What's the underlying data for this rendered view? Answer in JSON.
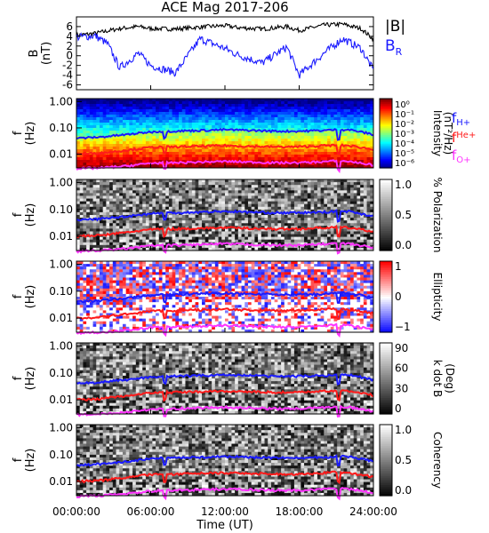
{
  "title": "ACE Mag 2017-206",
  "x_axis": {
    "label": "Time (UT)",
    "ticks": [
      "00:00:00",
      "06:00:00",
      "12:00:00",
      "18:00:00",
      "24:00:00"
    ]
  },
  "colors": {
    "b_total": "#000000",
    "b_r": "#1a1aff",
    "f_h": "#1a1aff",
    "f_he": "#ff1a1a",
    "f_o": "#ff33ff"
  },
  "chart_data": [
    {
      "type": "line",
      "panel": "B",
      "ylabel": "B",
      "yunit": "(nT)",
      "ylim": [
        -7,
        8
      ],
      "yticks": [
        "6",
        "4",
        "2",
        "0",
        "-2",
        "-4",
        "-6"
      ],
      "x_hours": [
        0,
        1.5,
        2.5,
        3.5,
        5,
        6,
        8,
        10,
        12,
        13,
        15,
        17,
        18,
        20,
        21.5,
        23,
        24
      ],
      "series": [
        {
          "name": "|B|",
          "values": [
            4.2,
            4.6,
            5.1,
            5.6,
            6.0,
            5.6,
            5.5,
            5.9,
            6.2,
            5.8,
            5.5,
            6.0,
            5.2,
            6.3,
            6.5,
            5.6,
            3.4
          ]
        },
        {
          "name": "B_R",
          "name_main": "B",
          "name_sub": "R",
          "values": [
            3.8,
            4.1,
            2.5,
            -2.5,
            0.5,
            -2.0,
            -3.5,
            3.5,
            1.5,
            0.2,
            -1.5,
            1.8,
            -4.0,
            0.5,
            3.5,
            1.5,
            -3.0
          ]
        }
      ]
    },
    {
      "type": "heatmap",
      "panel": "Intensity",
      "ylabel": "f",
      "yunit": "(Hz)",
      "yscale": "log",
      "ylim": [
        0.003,
        1.3
      ],
      "yticks": [
        "1.00",
        "0.10",
        "0.01"
      ],
      "colorbar": {
        "label": "Intensity",
        "unit": "(nT²/Hz)",
        "ticks": [
          "10⁰",
          "10⁻¹",
          "10⁻²",
          "10⁻³",
          "10⁻⁴",
          "10⁻⁵",
          "10⁻⁶"
        ]
      },
      "legend": [
        {
          "main": "f",
          "sub": "H+",
          "color": "#1a1aff"
        },
        {
          "main": "f",
          "sub": "He+",
          "color": "#ff1a1a"
        },
        {
          "main": "f",
          "sub": "O+",
          "color": "#ff33ff"
        }
      ]
    },
    {
      "type": "heatmap",
      "panel": "Polarization",
      "ylabel": "f",
      "yunit": "(Hz)",
      "yscale": "log",
      "yticks": [
        "1.00",
        "0.10",
        "0.01"
      ],
      "colorbar": {
        "label": "% Polarization",
        "ticks": [
          "1.0",
          "0.5",
          "0.0"
        ]
      }
    },
    {
      "type": "heatmap",
      "panel": "Ellipticity",
      "ylabel": "f",
      "yunit": "(Hz)",
      "yscale": "log",
      "yticks": [
        "1.00",
        "0.10",
        "0.01"
      ],
      "colorbar": {
        "label": "Ellipticity",
        "ticks": [
          "1",
          "0",
          "−1"
        ]
      }
    },
    {
      "type": "heatmap",
      "panel": "k dot B",
      "ylabel": "f",
      "yunit": "(Hz)",
      "yscale": "log",
      "yticks": [
        "1.00",
        "0.10",
        "0.01"
      ],
      "colorbar": {
        "label": "k dot B",
        "unit": "(Deg)",
        "ticks": [
          "90",
          "60",
          "30",
          "0"
        ]
      }
    },
    {
      "type": "heatmap",
      "panel": "Coherency",
      "ylabel": "f",
      "yunit": "(Hz)",
      "yscale": "log",
      "yticks": [
        "1.00",
        "0.10",
        "0.01"
      ],
      "colorbar": {
        "label": "Coherency",
        "ticks": [
          "1.0",
          "0.5",
          "0.0"
        ]
      }
    }
  ],
  "cyclotron_freqs": {
    "x_hours": [
      0,
      2,
      4,
      6,
      7,
      8,
      10,
      12,
      14,
      16,
      18,
      20,
      21,
      22,
      24
    ],
    "f_h": [
      0.04,
      0.045,
      0.055,
      0.07,
      0.075,
      0.075,
      0.08,
      0.085,
      0.08,
      0.075,
      0.075,
      0.08,
      0.085,
      0.085,
      0.055
    ],
    "f_he": [
      0.01,
      0.011,
      0.014,
      0.018,
      0.019,
      0.019,
      0.02,
      0.021,
      0.02,
      0.019,
      0.019,
      0.021,
      0.022,
      0.021,
      0.015
    ],
    "f_o": [
      0.0028,
      0.003,
      0.0035,
      0.0045,
      0.0047,
      0.0047,
      0.005,
      0.0053,
      0.005,
      0.0047,
      0.0047,
      0.0052,
      0.0055,
      0.0053,
      0.0038
    ]
  }
}
